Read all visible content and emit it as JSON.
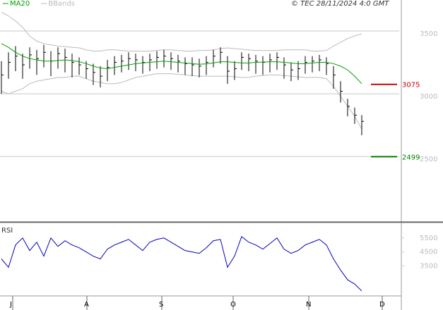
{
  "chart_data": [
    {
      "type": "ohlc",
      "copyright": "© TEC 28/11/2024 4:0 GMT",
      "x": [
        0,
        1,
        2,
        3,
        4,
        5,
        6,
        7,
        8,
        9,
        10,
        11,
        12,
        13,
        14,
        15,
        16,
        17,
        18,
        19,
        20,
        21,
        22,
        23,
        24,
        25,
        26,
        27,
        28,
        29,
        30,
        31,
        32,
        33,
        34,
        35,
        36,
        37,
        38,
        39,
        40,
        41,
        42,
        43,
        44,
        45,
        46,
        47,
        48,
        49,
        50,
        51
      ],
      "high": [
        3260,
        3330,
        3380,
        3320,
        3370,
        3350,
        3390,
        3340,
        3370,
        3360,
        3320,
        3290,
        3260,
        3240,
        3220,
        3270,
        3300,
        3310,
        3330,
        3320,
        3300,
        3320,
        3340,
        3350,
        3330,
        3310,
        3290,
        3290,
        3280,
        3300,
        3350,
        3370,
        3300,
        3260,
        3330,
        3320,
        3310,
        3300,
        3320,
        3330,
        3290,
        3250,
        3260,
        3300,
        3300,
        3310,
        3290,
        3220,
        3100,
        2960,
        2890,
        2830
      ],
      "low": [
        3000,
        3120,
        3180,
        3120,
        3200,
        3150,
        3210,
        3140,
        3200,
        3170,
        3130,
        3150,
        3120,
        3070,
        3050,
        3100,
        3150,
        3170,
        3190,
        3180,
        3160,
        3180,
        3200,
        3210,
        3190,
        3170,
        3150,
        3140,
        3130,
        3150,
        3210,
        3240,
        3080,
        3110,
        3190,
        3180,
        3160,
        3150,
        3170,
        3190,
        3120,
        3100,
        3110,
        3160,
        3170,
        3180,
        3150,
        3040,
        2930,
        2820,
        2760,
        2670
      ],
      "close": [
        3150,
        3250,
        3300,
        3230,
        3310,
        3280,
        3330,
        3260,
        3320,
        3290,
        3250,
        3230,
        3200,
        3170,
        3140,
        3210,
        3250,
        3260,
        3280,
        3270,
        3250,
        3270,
        3290,
        3300,
        3280,
        3260,
        3240,
        3230,
        3220,
        3250,
        3300,
        3330,
        3180,
        3200,
        3290,
        3280,
        3260,
        3250,
        3270,
        3290,
        3230,
        3190,
        3200,
        3250,
        3260,
        3270,
        3240,
        3150,
        3020,
        2900,
        2830,
        2780
      ],
      "color": "#000000",
      "series": [
        {
          "name": "MA20",
          "color": "#00a000",
          "values": [
            3400,
            3370,
            3330,
            3300,
            3280,
            3270,
            3260,
            3260,
            3265,
            3270,
            3265,
            3255,
            3240,
            3220,
            3205,
            3200,
            3210,
            3220,
            3230,
            3240,
            3245,
            3250,
            3255,
            3260,
            3255,
            3250,
            3245,
            3240,
            3235,
            3238,
            3245,
            3255,
            3255,
            3250,
            3245,
            3245,
            3250,
            3252,
            3255,
            3255,
            3250,
            3245,
            3240,
            3240,
            3245,
            3250,
            3250,
            3240,
            3220,
            3190,
            3140,
            3080
          ]
        },
        {
          "name": "BBands",
          "color": "#bbbbbb",
          "upper": [
            3650,
            3620,
            3580,
            3530,
            3460,
            3420,
            3400,
            3390,
            3380,
            3375,
            3370,
            3365,
            3350,
            3340,
            3340,
            3350,
            3350,
            3345,
            3340,
            3340,
            3340,
            3340,
            3345,
            3350,
            3350,
            3345,
            3340,
            3340,
            3345,
            3345,
            3350,
            3360,
            3365,
            3360,
            3355,
            3350,
            3345,
            3345,
            3345,
            3345,
            3350,
            3350,
            3350,
            3350,
            3340,
            3340,
            3345,
            3380,
            3410,
            3440,
            3460,
            3478
          ],
          "lower": [
            3020,
            3000,
            3020,
            3040,
            3080,
            3100,
            3110,
            3120,
            3130,
            3130,
            3140,
            3140,
            3120,
            3100,
            3090,
            3080,
            3080,
            3090,
            3110,
            3130,
            3140,
            3150,
            3160,
            3160,
            3160,
            3155,
            3150,
            3145,
            3140,
            3140,
            3140,
            3140,
            3140,
            3135,
            3130,
            3130,
            3140,
            3145,
            3150,
            3150,
            3145,
            3140,
            3135,
            3130,
            3130,
            3130,
            3120,
            3060,
            2980,
            2900,
            2820,
            2720
          ]
        }
      ],
      "levels": [
        {
          "value": 3075,
          "color": "#d00000"
        },
        {
          "value": 2499,
          "color": "#008000"
        }
      ],
      "xlim": [
        -0.2,
        57
      ],
      "xticks": [
        {
          "value": 1.6,
          "label": "J"
        },
        {
          "value": 12.1,
          "label": "A"
        },
        {
          "value": 22.7,
          "label": "S"
        },
        {
          "value": 32.8,
          "label": "O"
        },
        {
          "value": 43.5,
          "label": "N"
        },
        {
          "value": 53.9,
          "label": "D"
        }
      ],
      "ylim": [
        1990,
        3747
      ],
      "yticks": [
        3500,
        3000,
        2500
      ],
      "grid": true
    },
    {
      "type": "line",
      "title": "RSI",
      "color": "#0000c0",
      "values": [
        40,
        34,
        50,
        55,
        46,
        52,
        42,
        55,
        49,
        53,
        50,
        48,
        45,
        42,
        40,
        47,
        50,
        52,
        54,
        50,
        46,
        52,
        54,
        55,
        52,
        49,
        46,
        45,
        44,
        48,
        53,
        54,
        34,
        42,
        56,
        52,
        50,
        47,
        51,
        55,
        47,
        44,
        46,
        50,
        52,
        54,
        50,
        40,
        32,
        25,
        22,
        17
      ],
      "ylim": [
        13.5,
        66
      ],
      "yticks": [
        {
          "value": 55,
          "label": "5500"
        },
        {
          "value": 45,
          "label": "4500"
        },
        {
          "value": 35,
          "label": "3500"
        }
      ]
    }
  ]
}
